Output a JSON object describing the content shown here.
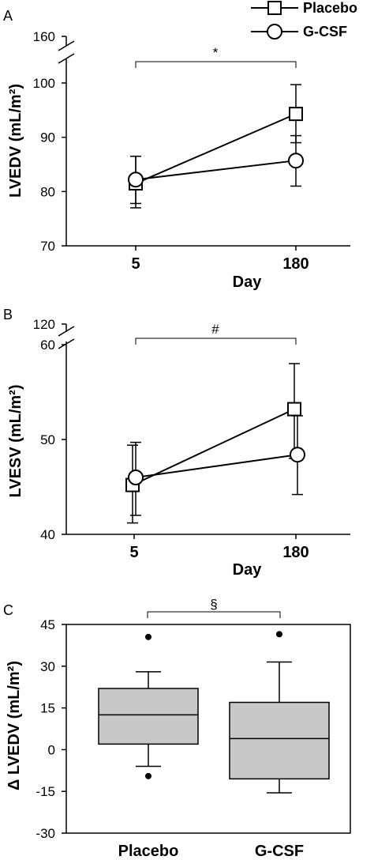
{
  "legend": {
    "entries": [
      "Placebo",
      "G-CSF"
    ]
  },
  "chart_data": [
    {
      "panel": "A",
      "type": "line",
      "x": [
        5,
        180
      ],
      "categories": [
        "5",
        "180"
      ],
      "xlabel": "Day",
      "ylabel": "LVEDV (mL/m²)",
      "ylim": [
        70,
        100
      ],
      "yticks": [
        70,
        80,
        90,
        100
      ],
      "broken_axis_upper_tick": 160,
      "significance": "*",
      "series": [
        {
          "name": "Placebo",
          "marker": "square",
          "values": [
            81.5,
            94.3
          ],
          "error_low": [
            77.0,
            89.0
          ],
          "error_high": [
            86.5,
            99.7
          ]
        },
        {
          "name": "G-CSF",
          "marker": "circle",
          "values": [
            82.2,
            85.7
          ],
          "error_low": [
            77.8,
            81.0
          ],
          "error_high": [
            86.5,
            90.3
          ]
        }
      ]
    },
    {
      "panel": "B",
      "type": "line",
      "x": [
        5,
        180
      ],
      "categories": [
        "5",
        "180"
      ],
      "xlabel": "Day",
      "ylabel": "LVESV (mL/m²)",
      "ylim": [
        40,
        60
      ],
      "yticks": [
        40,
        50,
        60
      ],
      "broken_axis_upper_tick": 120,
      "significance": "#",
      "series": [
        {
          "name": "Placebo",
          "marker": "square",
          "values": [
            45.2,
            53.2
          ],
          "error_low": [
            41.2,
            48.0
          ],
          "error_high": [
            49.4,
            58.0
          ]
        },
        {
          "name": "G-CSF",
          "marker": "circle",
          "values": [
            46.0,
            48.4
          ],
          "error_low": [
            42.0,
            44.2
          ],
          "error_high": [
            49.7,
            52.5
          ]
        }
      ]
    },
    {
      "panel": "C",
      "type": "box",
      "categories": [
        "Placebo",
        "G-CSF"
      ],
      "ylabel": "Δ LVEDV (mL/m²)",
      "ylim": [
        -30,
        45
      ],
      "yticks": [
        -30,
        -15,
        0,
        15,
        30,
        45
      ],
      "significance": "§",
      "boxes": [
        {
          "name": "Placebo",
          "whisker_low": -6.0,
          "q1": 2.0,
          "median": 12.5,
          "q3": 22.0,
          "whisker_high": 28.0,
          "outliers": [
            40.5,
            -9.5
          ]
        },
        {
          "name": "G-CSF",
          "whisker_low": -15.5,
          "q1": -10.5,
          "median": 4.0,
          "q3": 17.0,
          "whisker_high": 31.5,
          "outliers": [
            41.5
          ]
        }
      ]
    }
  ]
}
